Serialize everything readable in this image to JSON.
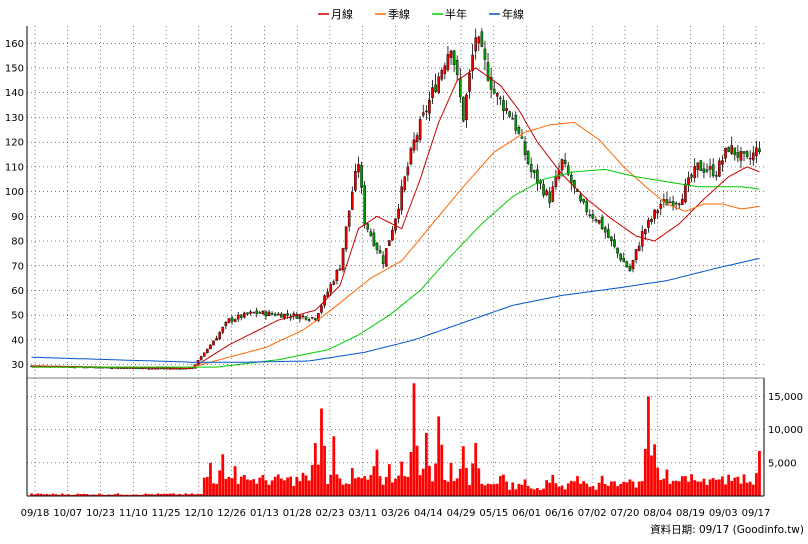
{
  "chart_data": {
    "type": "candlestick-volume",
    "legend": {
      "placement": "top-center",
      "items": [
        {
          "name": "月線",
          "color": "#cc0000"
        },
        {
          "name": "季線",
          "color": "#ff6600"
        },
        {
          "name": "半年",
          "color": "#00cc00"
        },
        {
          "name": "年線",
          "color": "#0055cc"
        }
      ]
    },
    "price_axis": {
      "ylim": [
        25,
        167
      ],
      "ticks": [
        30,
        40,
        50,
        60,
        70,
        80,
        90,
        100,
        110,
        120,
        130,
        140,
        150,
        160
      ],
      "tick_labels": [
        "30",
        "40",
        "50",
        "60",
        "70",
        "80",
        "90",
        "100",
        "110",
        "120",
        "130",
        "140",
        "150",
        "160"
      ],
      "grid": true
    },
    "volume_axis": {
      "ylim": [
        0,
        17800
      ],
      "ticks": [
        5000,
        10000,
        15000
      ],
      "tick_labels": [
        "5,000",
        "10,000",
        "15,000"
      ],
      "grid": true
    },
    "x_axis": {
      "tick_labels": [
        "09/18",
        "10/07",
        "10/23",
        "11/10",
        "11/25",
        "12/10",
        "12/26",
        "01/13",
        "01/28",
        "02/23",
        "03/11",
        "03/26",
        "04/14",
        "04/29",
        "05/15",
        "06/01",
        "06/16",
        "07/02",
        "07/20",
        "08/04",
        "08/19",
        "09/03",
        "09/17"
      ]
    },
    "close_anchors": [
      {
        "i": 0,
        "v": 29.5
      },
      {
        "i": 20,
        "v": 29
      },
      {
        "i": 40,
        "v": 28.5
      },
      {
        "i": 52,
        "v": 28.5
      },
      {
        "i": 58,
        "v": 38
      },
      {
        "i": 64,
        "v": 48
      },
      {
        "i": 72,
        "v": 51
      },
      {
        "i": 84,
        "v": 50
      },
      {
        "i": 92,
        "v": 49
      },
      {
        "i": 100,
        "v": 70
      },
      {
        "i": 104,
        "v": 100
      },
      {
        "i": 106,
        "v": 112
      },
      {
        "i": 108,
        "v": 88
      },
      {
        "i": 114,
        "v": 72
      },
      {
        "i": 118,
        "v": 90
      },
      {
        "i": 124,
        "v": 120
      },
      {
        "i": 130,
        "v": 140
      },
      {
        "i": 136,
        "v": 160
      },
      {
        "i": 140,
        "v": 130
      },
      {
        "i": 144,
        "v": 163
      },
      {
        "i": 150,
        "v": 140
      },
      {
        "i": 156,
        "v": 130
      },
      {
        "i": 162,
        "v": 108
      },
      {
        "i": 168,
        "v": 97
      },
      {
        "i": 172,
        "v": 112
      },
      {
        "i": 178,
        "v": 95
      },
      {
        "i": 184,
        "v": 88
      },
      {
        "i": 190,
        "v": 75
      },
      {
        "i": 194,
        "v": 68
      },
      {
        "i": 198,
        "v": 83
      },
      {
        "i": 204,
        "v": 95
      },
      {
        "i": 210,
        "v": 97
      },
      {
        "i": 216,
        "v": 110
      },
      {
        "i": 222,
        "v": 108
      },
      {
        "i": 226,
        "v": 118
      },
      {
        "i": 232,
        "v": 112
      },
      {
        "i": 236,
        "v": 118
      }
    ],
    "moving_averages": {
      "月線": [
        {
          "i": 0,
          "v": 29.5
        },
        {
          "i": 52,
          "v": 28.5
        },
        {
          "i": 64,
          "v": 38
        },
        {
          "i": 80,
          "v": 48
        },
        {
          "i": 92,
          "v": 52
        },
        {
          "i": 100,
          "v": 62
        },
        {
          "i": 106,
          "v": 85
        },
        {
          "i": 112,
          "v": 90
        },
        {
          "i": 120,
          "v": 85
        },
        {
          "i": 126,
          "v": 105
        },
        {
          "i": 132,
          "v": 128
        },
        {
          "i": 138,
          "v": 145
        },
        {
          "i": 144,
          "v": 150
        },
        {
          "i": 152,
          "v": 143
        },
        {
          "i": 158,
          "v": 133
        },
        {
          "i": 164,
          "v": 120
        },
        {
          "i": 172,
          "v": 107
        },
        {
          "i": 180,
          "v": 97
        },
        {
          "i": 188,
          "v": 89
        },
        {
          "i": 196,
          "v": 82
        },
        {
          "i": 202,
          "v": 80
        },
        {
          "i": 210,
          "v": 87
        },
        {
          "i": 218,
          "v": 97
        },
        {
          "i": 226,
          "v": 106
        },
        {
          "i": 232,
          "v": 110
        },
        {
          "i": 236,
          "v": 108
        }
      ],
      "季線": [
        {
          "i": 0,
          "v": 29
        },
        {
          "i": 52,
          "v": 29
        },
        {
          "i": 64,
          "v": 33
        },
        {
          "i": 76,
          "v": 37
        },
        {
          "i": 88,
          "v": 44
        },
        {
          "i": 96,
          "v": 51
        },
        {
          "i": 102,
          "v": 57
        },
        {
          "i": 110,
          "v": 65
        },
        {
          "i": 120,
          "v": 72
        },
        {
          "i": 130,
          "v": 87
        },
        {
          "i": 140,
          "v": 102
        },
        {
          "i": 150,
          "v": 116
        },
        {
          "i": 160,
          "v": 124
        },
        {
          "i": 168,
          "v": 127
        },
        {
          "i": 176,
          "v": 128
        },
        {
          "i": 184,
          "v": 121
        },
        {
          "i": 192,
          "v": 110
        },
        {
          "i": 200,
          "v": 101
        },
        {
          "i": 206,
          "v": 95
        },
        {
          "i": 212,
          "v": 92
        },
        {
          "i": 218,
          "v": 95
        },
        {
          "i": 224,
          "v": 95
        },
        {
          "i": 230,
          "v": 93
        },
        {
          "i": 236,
          "v": 94
        }
      ],
      "半年": [
        {
          "i": 0,
          "v": 29
        },
        {
          "i": 60,
          "v": 29
        },
        {
          "i": 80,
          "v": 32
        },
        {
          "i": 96,
          "v": 36
        },
        {
          "i": 106,
          "v": 42
        },
        {
          "i": 116,
          "v": 50
        },
        {
          "i": 126,
          "v": 60
        },
        {
          "i": 136,
          "v": 74
        },
        {
          "i": 146,
          "v": 87
        },
        {
          "i": 156,
          "v": 98
        },
        {
          "i": 166,
          "v": 105
        },
        {
          "i": 176,
          "v": 108
        },
        {
          "i": 186,
          "v": 109
        },
        {
          "i": 196,
          "v": 106
        },
        {
          "i": 206,
          "v": 104
        },
        {
          "i": 216,
          "v": 102
        },
        {
          "i": 224,
          "v": 102
        },
        {
          "i": 230,
          "v": 102
        },
        {
          "i": 236,
          "v": 101
        }
      ],
      "年線": [
        {
          "i": 0,
          "v": 33
        },
        {
          "i": 52,
          "v": 31
        },
        {
          "i": 70,
          "v": 31
        },
        {
          "i": 90,
          "v": 31.5
        },
        {
          "i": 108,
          "v": 35
        },
        {
          "i": 124,
          "v": 40
        },
        {
          "i": 140,
          "v": 47
        },
        {
          "i": 156,
          "v": 54
        },
        {
          "i": 172,
          "v": 58
        },
        {
          "i": 190,
          "v": 61
        },
        {
          "i": 206,
          "v": 64
        },
        {
          "i": 222,
          "v": 69
        },
        {
          "i": 236,
          "v": 73
        }
      ]
    },
    "volume_spikes": [
      {
        "i": 58,
        "v": 5000
      },
      {
        "i": 62,
        "v": 6300
      },
      {
        "i": 66,
        "v": 4500
      },
      {
        "i": 70,
        "v": 2500
      },
      {
        "i": 88,
        "v": 3500
      },
      {
        "i": 92,
        "v": 8000
      },
      {
        "i": 94,
        "v": 13200
      },
      {
        "i": 98,
        "v": 9000
      },
      {
        "i": 104,
        "v": 4200
      },
      {
        "i": 108,
        "v": 3000
      },
      {
        "i": 112,
        "v": 7000
      },
      {
        "i": 116,
        "v": 4800
      },
      {
        "i": 120,
        "v": 5200
      },
      {
        "i": 124,
        "v": 17000
      },
      {
        "i": 128,
        "v": 9500
      },
      {
        "i": 132,
        "v": 12000
      },
      {
        "i": 136,
        "v": 5000
      },
      {
        "i": 140,
        "v": 7500
      },
      {
        "i": 144,
        "v": 8000
      },
      {
        "i": 152,
        "v": 3000
      },
      {
        "i": 160,
        "v": 2500
      },
      {
        "i": 168,
        "v": 2000
      },
      {
        "i": 176,
        "v": 2200
      },
      {
        "i": 186,
        "v": 1800
      },
      {
        "i": 194,
        "v": 2500
      },
      {
        "i": 200,
        "v": 15000
      },
      {
        "i": 202,
        "v": 7800
      },
      {
        "i": 206,
        "v": 4000
      },
      {
        "i": 212,
        "v": 3000
      },
      {
        "i": 220,
        "v": 2500
      },
      {
        "i": 226,
        "v": 3200
      },
      {
        "i": 232,
        "v": 2000
      },
      {
        "i": 236,
        "v": 6800
      }
    ],
    "colors": {
      "up": "#e60000",
      "down": "#009900",
      "wick": "#000000",
      "volume": "#ff0000",
      "grid": "#000000"
    }
  },
  "source": "資料日期: 09/17  (Goodinfo.tw)"
}
